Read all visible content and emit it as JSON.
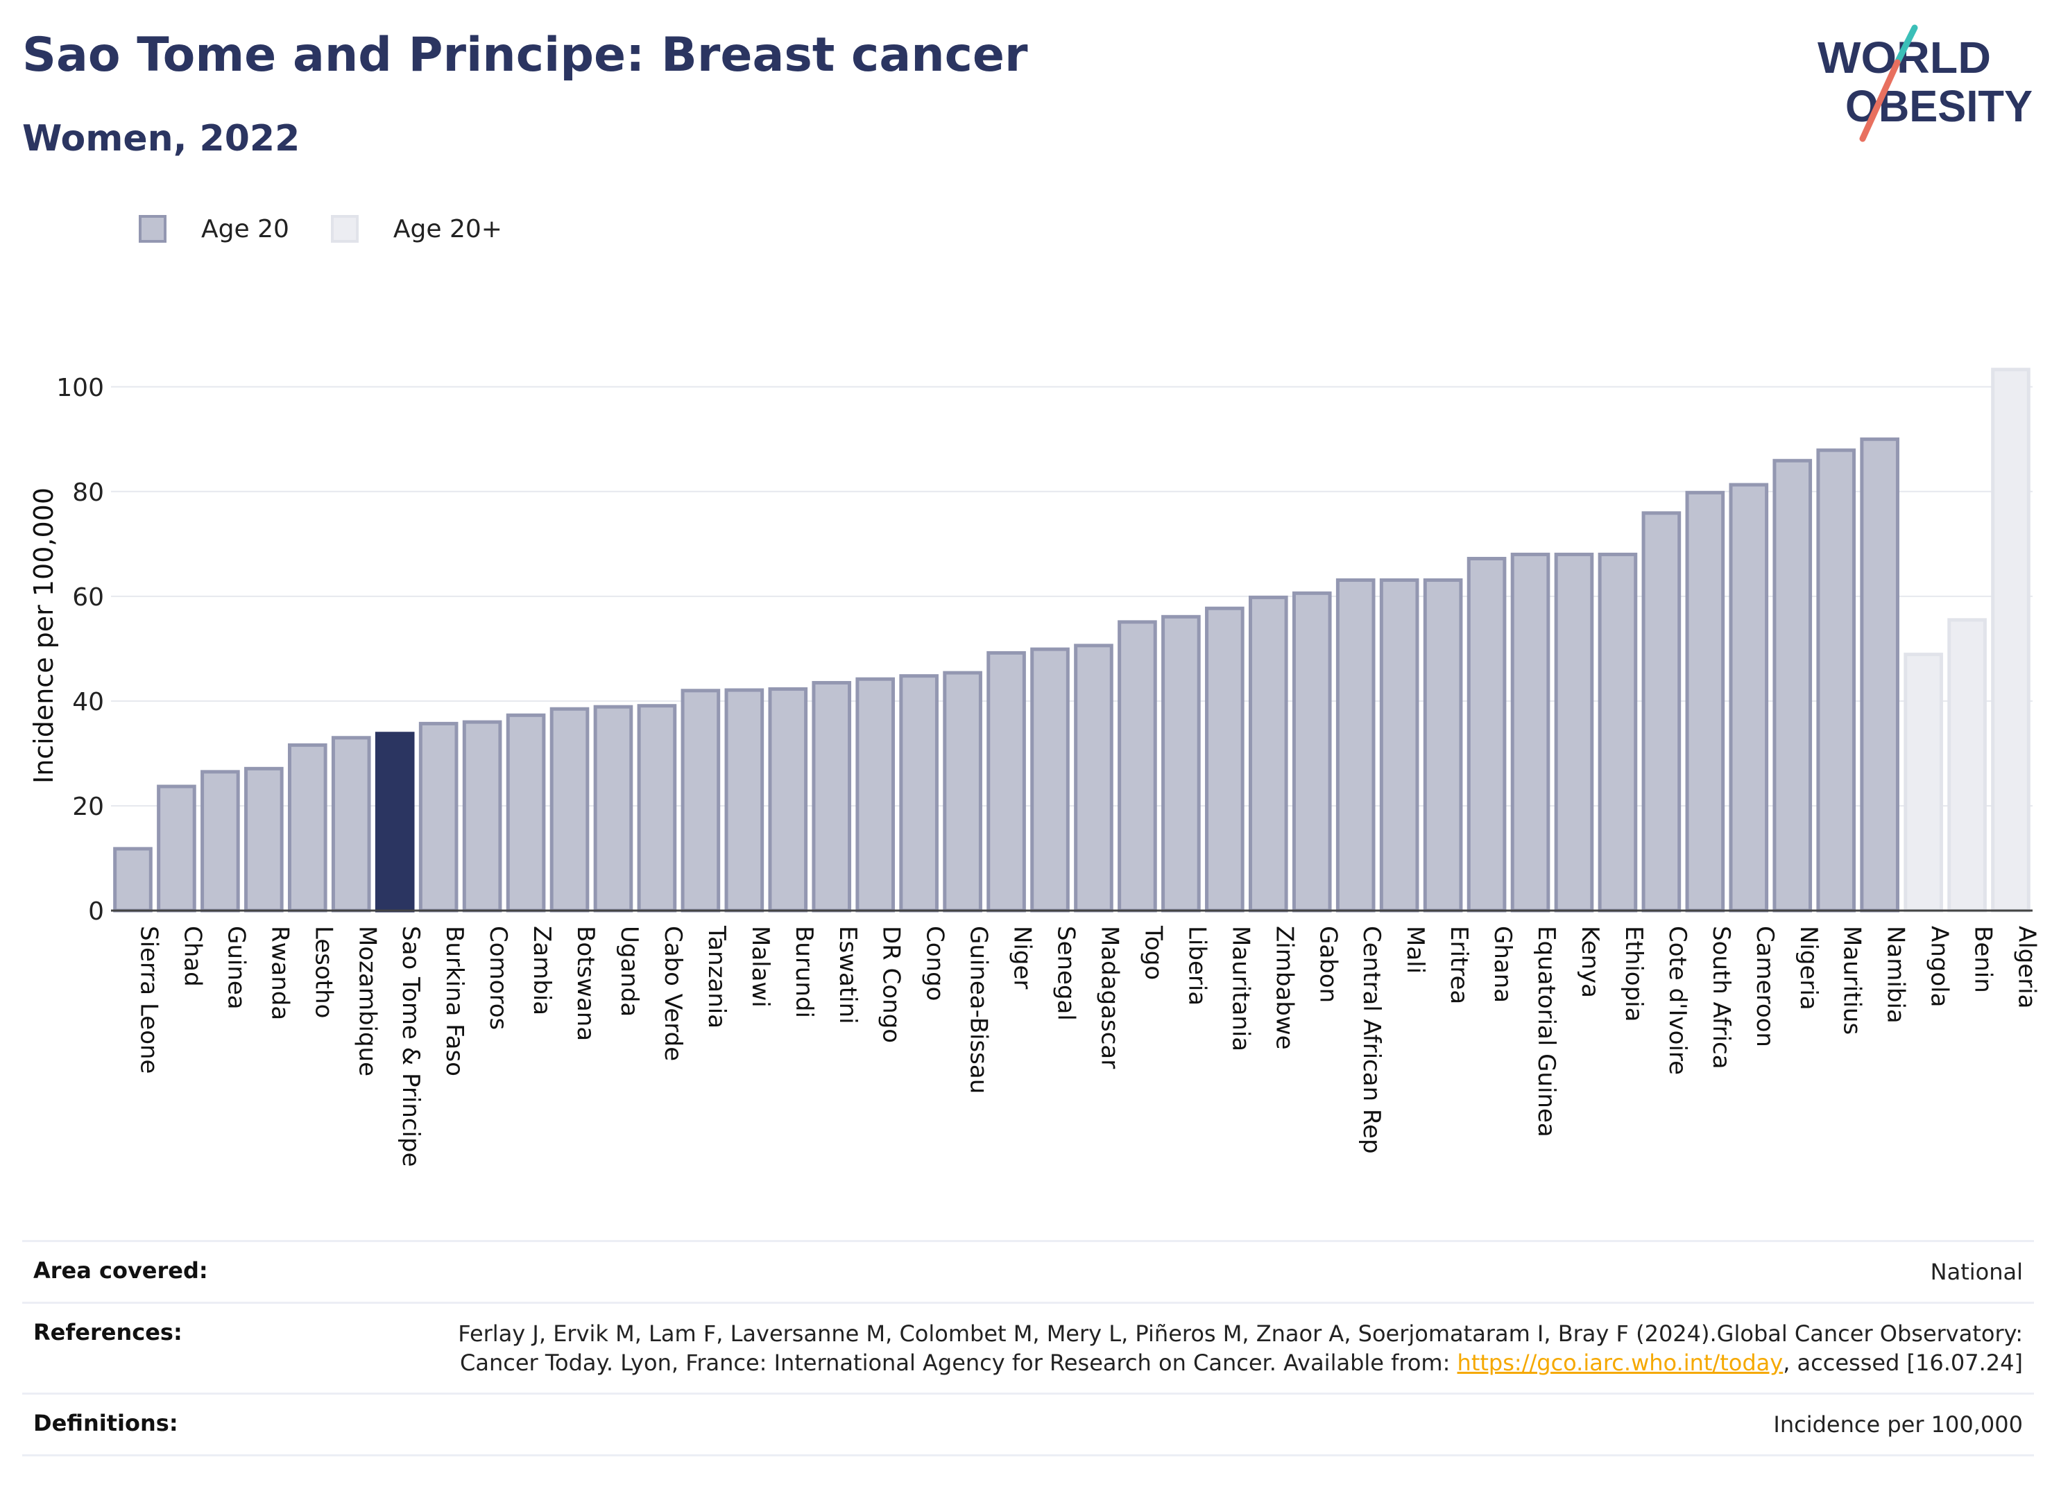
{
  "title": "Sao Tome and Principe: Breast cancer",
  "subtitle": "Women, 2022",
  "logo": {
    "line1": "WORLD",
    "line2": "OBESITY"
  },
  "colors": {
    "age20_fill": "#bfc2d1",
    "age20_stroke": "#9397b1",
    "highlight": "#2b3561",
    "age20plus_fill": "#ecedf2",
    "age20plus_stroke": "#e1e3ea",
    "title": "#2b3561",
    "logo_teal": "#3bbfb8",
    "logo_red": "#e8705f"
  },
  "legend": [
    {
      "label": "Age 20",
      "key": "age20"
    },
    {
      "label": "Age 20+",
      "key": "age20plus"
    }
  ],
  "chart_data": {
    "type": "bar",
    "ylabel": "Incidence per 100,000",
    "ylim": [
      0,
      105
    ],
    "yticks": [
      0,
      20,
      40,
      60,
      80,
      100
    ],
    "grid": true,
    "legend_position": "top-left",
    "highlight": "Sao Tome & Principe",
    "categories": [
      "Sierra Leone",
      "Chad",
      "Guinea",
      "Rwanda",
      "Lesotho",
      "Mozambique",
      "Sao Tome & Principe",
      "Burkina Faso",
      "Comoros",
      "Zambia",
      "Botswana",
      "Uganda",
      "Cabo Verde",
      "Tanzania",
      "Malawi",
      "Burundi",
      "Eswatini",
      "DR Congo",
      "Congo",
      "Guinea-Bissau",
      "Niger",
      "Senegal",
      "Madagascar",
      "Togo",
      "Liberia",
      "Mauritania",
      "Zimbabwe",
      "Gabon",
      "Central African Rep",
      "Mali",
      "Eritrea",
      "Ghana",
      "Equatorial Guinea",
      "Kenya",
      "Ethiopia",
      "Cote d'Ivoire",
      "South Africa",
      "Cameroon",
      "Nigeria",
      "Mauritius",
      "Namibia",
      "Angola",
      "Benin",
      "Algeria"
    ],
    "values": [
      11.8,
      23.7,
      26.5,
      27.1,
      31.6,
      33.0,
      33.8,
      35.7,
      36.0,
      37.3,
      38.5,
      38.9,
      39.1,
      42.0,
      42.1,
      42.3,
      43.5,
      44.2,
      44.8,
      45.4,
      49.2,
      49.9,
      50.6,
      55.1,
      56.1,
      57.7,
      59.8,
      60.6,
      63.1,
      63.1,
      63.1,
      67.2,
      68.0,
      68.0,
      68.0,
      75.9,
      79.8,
      81.3,
      85.9,
      87.9,
      90.0,
      48.9,
      55.5,
      103.3
    ],
    "groups": [
      "Age 20",
      "Age 20",
      "Age 20",
      "Age 20",
      "Age 20",
      "Age 20",
      "Age 20",
      "Age 20",
      "Age 20",
      "Age 20",
      "Age 20",
      "Age 20",
      "Age 20",
      "Age 20",
      "Age 20",
      "Age 20",
      "Age 20",
      "Age 20",
      "Age 20",
      "Age 20",
      "Age 20",
      "Age 20",
      "Age 20",
      "Age 20",
      "Age 20",
      "Age 20",
      "Age 20",
      "Age 20",
      "Age 20",
      "Age 20",
      "Age 20",
      "Age 20",
      "Age 20",
      "Age 20",
      "Age 20",
      "Age 20",
      "Age 20",
      "Age 20",
      "Age 20",
      "Age 20",
      "Age 20",
      "Age 20+",
      "Age 20+",
      "Age 20+"
    ]
  },
  "info": {
    "area_label": "Area covered:",
    "area_value": "National",
    "references_label": "References:",
    "references_text_1": "Ferlay J, Ervik M, Lam F, Laversanne M, Colombet M, Mery L, Piñeros M, Znaor A, Soerjomataram I, Bray F (2024).Global Cancer Observatory: Cancer Today. Lyon, France: International Agency for Research on Cancer. Available from: ",
    "references_link": "https://gco.iarc.who.int/today",
    "references_text_2": ", accessed [16.07.24]",
    "definitions_label": "Definitions:",
    "definitions_value": "Incidence per 100,000"
  }
}
